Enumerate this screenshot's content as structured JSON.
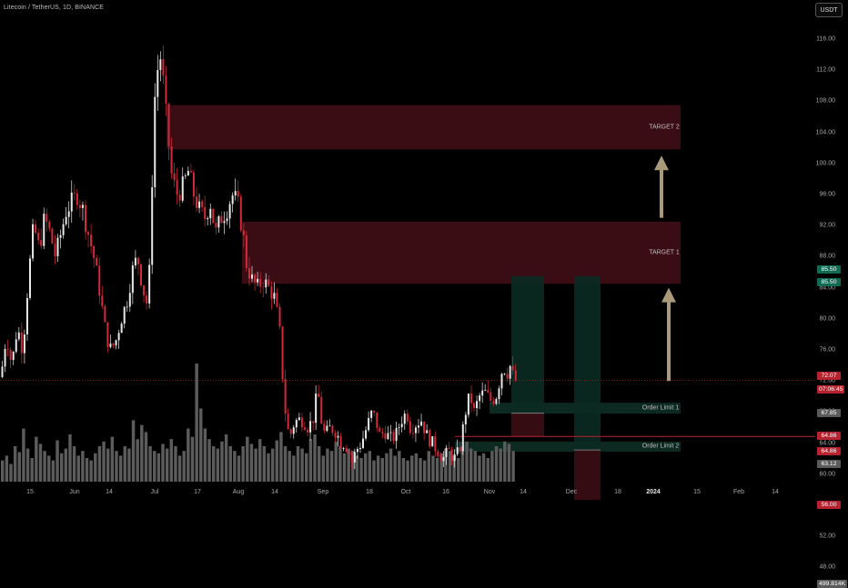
{
  "header": {
    "symbol_line": "Litecoin / TetherUS, 1D, BINANCE",
    "currency_button": "USDT"
  },
  "chart_data": {
    "type": "candlestick",
    "symbol": "Litecoin / TetherUS",
    "interval": "1D",
    "exchange": "BINANCE",
    "y_range": [
      46,
      118
    ],
    "price_ticks": [
      "116.00",
      "112.00",
      "108.00",
      "104.00",
      "100.00",
      "96.00",
      "92.00",
      "88.00",
      "84.00",
      "80.00",
      "76.00",
      "72.00",
      "68.00",
      "64.00",
      "60.00",
      "56.00",
      "52.00",
      "48.00"
    ],
    "x_labels": [
      {
        "label": "15",
        "bold": false
      },
      {
        "label": "Jun",
        "bold": false
      },
      {
        "label": "14",
        "bold": false
      },
      {
        "label": "Jul",
        "bold": false
      },
      {
        "label": "17",
        "bold": false
      },
      {
        "label": "Aug",
        "bold": false
      },
      {
        "label": "14",
        "bold": false
      },
      {
        "label": "Sep",
        "bold": false
      },
      {
        "label": "18",
        "bold": false
      },
      {
        "label": "Oct",
        "bold": false
      },
      {
        "label": "16",
        "bold": false
      },
      {
        "label": "Nov",
        "bold": false
      },
      {
        "label": "14",
        "bold": false
      },
      {
        "label": "Dec",
        "bold": false
      },
      {
        "label": "18",
        "bold": false
      },
      {
        "label": "2024",
        "bold": true
      },
      {
        "label": "15",
        "bold": false
      },
      {
        "label": "Feb",
        "bold": false
      },
      {
        "label": "14",
        "bold": false
      }
    ],
    "price_path": [
      [
        0,
        72.5
      ],
      [
        6,
        78
      ],
      [
        12,
        74
      ],
      [
        18,
        79
      ],
      [
        24,
        76
      ],
      [
        30,
        85
      ],
      [
        36,
        92
      ],
      [
        42,
        89
      ],
      [
        48,
        93
      ],
      [
        54,
        91
      ],
      [
        60,
        88
      ],
      [
        66,
        91
      ],
      [
        72,
        94
      ],
      [
        78,
        95
      ],
      [
        84,
        96
      ],
      [
        90,
        94
      ],
      [
        96,
        91
      ],
      [
        102,
        88
      ],
      [
        108,
        84
      ],
      [
        114,
        79
      ],
      [
        120,
        76
      ],
      [
        126,
        77
      ],
      [
        132,
        80
      ],
      [
        138,
        82
      ],
      [
        144,
        86
      ],
      [
        150,
        88
      ],
      [
        156,
        84
      ],
      [
        160,
        82
      ],
      [
        164,
        87
      ],
      [
        168,
        107
      ],
      [
        172,
        112
      ],
      [
        176,
        114
      ],
      [
        180,
        108
      ],
      [
        184,
        103
      ],
      [
        188,
        98
      ],
      [
        194,
        96
      ],
      [
        200,
        97
      ],
      [
        206,
        99
      ],
      [
        212,
        96
      ],
      [
        218,
        94
      ],
      [
        224,
        93
      ],
      [
        230,
        95
      ],
      [
        236,
        91
      ],
      [
        242,
        93
      ],
      [
        248,
        94
      ],
      [
        254,
        96
      ],
      [
        260,
        95
      ],
      [
        266,
        91
      ],
      [
        270,
        87
      ],
      [
        276,
        85
      ],
      [
        282,
        84
      ],
      [
        288,
        85
      ],
      [
        294,
        84
      ],
      [
        300,
        83
      ],
      [
        306,
        79
      ],
      [
        310,
        72
      ],
      [
        314,
        66
      ],
      [
        318,
        65
      ],
      [
        322,
        66.5
      ],
      [
        326,
        67
      ],
      [
        332,
        67
      ],
      [
        338,
        66
      ],
      [
        344,
        67.5
      ],
      [
        348,
        71
      ],
      [
        352,
        67
      ],
      [
        356,
        65
      ],
      [
        362,
        66
      ],
      [
        368,
        65.5
      ],
      [
        374,
        64
      ],
      [
        378,
        64
      ],
      [
        382,
        63
      ],
      [
        386,
        61.5
      ],
      [
        390,
        63
      ],
      [
        396,
        64
      ],
      [
        402,
        66
      ],
      [
        408,
        68
      ],
      [
        412,
        67
      ],
      [
        416,
        65
      ],
      [
        422,
        65.5
      ],
      [
        428,
        64.5
      ],
      [
        434,
        65
      ],
      [
        440,
        67
      ],
      [
        446,
        68
      ],
      [
        450,
        66
      ],
      [
        456,
        66.5
      ],
      [
        462,
        67
      ],
      [
        468,
        65
      ],
      [
        474,
        64
      ],
      [
        480,
        63
      ],
      [
        486,
        62
      ],
      [
        492,
        63
      ],
      [
        498,
        62
      ],
      [
        504,
        63
      ],
      [
        508,
        66
      ],
      [
        512,
        69
      ],
      [
        516,
        70
      ],
      [
        520,
        68
      ],
      [
        526,
        70
      ],
      [
        532,
        70.5
      ],
      [
        538,
        69.5
      ],
      [
        544,
        70
      ],
      [
        548,
        72
      ],
      [
        552,
        74
      ],
      [
        556,
        73
      ],
      [
        560,
        74
      ],
      [
        564,
        72
      ],
      [
        566,
        72.07
      ]
    ],
    "volume_pct": [
      18,
      22,
      15,
      30,
      25,
      45,
      28,
      20,
      38,
      32,
      26,
      22,
      18,
      35,
      24,
      28,
      40,
      30,
      22,
      26,
      20,
      18,
      24,
      30,
      34,
      28,
      38,
      26,
      22,
      30,
      28,
      52,
      36,
      48,
      42,
      30,
      26,
      24,
      32,
      28,
      36,
      30,
      22,
      26,
      45,
      38,
      100,
      62,
      45,
      36,
      30,
      28,
      34,
      40,
      30,
      26,
      22,
      30,
      38,
      32,
      28,
      36,
      30,
      24,
      28,
      35,
      42,
      30,
      26,
      22,
      30,
      28,
      24,
      36,
      40,
      30,
      22,
      28,
      26,
      34,
      30,
      24,
      28,
      26,
      22,
      20,
      24,
      26,
      18,
      22,
      20,
      24,
      28,
      22,
      26,
      20,
      18,
      22,
      24,
      20,
      18,
      26,
      22,
      20,
      24,
      28,
      26,
      22,
      20,
      30,
      34,
      28,
      26,
      22,
      24,
      20,
      26,
      30,
      28,
      34,
      32,
      26
    ],
    "zones": [
      {
        "name": "target-2",
        "label": "TARGET 2",
        "x0": 183,
        "x1": 748,
        "top": 107.5,
        "bottom": 101.8,
        "color": "#3a0d14"
      },
      {
        "name": "target-1",
        "label": "TARGET 1",
        "x0": 266,
        "x1": 748,
        "top": 92.5,
        "bottom": 84.5,
        "color": "#3a0d14"
      },
      {
        "name": "order-limit-1",
        "label": "Order Limit 1",
        "x0": 538,
        "x1": 748,
        "top": 69.2,
        "bottom": 67.8,
        "color": "#0c2a22"
      },
      {
        "name": "order-limit-2",
        "label": "Order Limit 2",
        "x0": 500,
        "x1": 748,
        "top": 64.2,
        "bottom": 62.9,
        "color": "#0c2a22"
      }
    ],
    "positions": [
      {
        "name": "long-position-1",
        "x0": 562,
        "x1": 598,
        "entry": 67.85,
        "target": 85.5,
        "stop": 64.86
      },
      {
        "name": "long-position-2",
        "x0": 631,
        "x1": 660,
        "entry": 63.12,
        "target": 85.5,
        "stop": 56.0
      }
    ],
    "arrows": [
      {
        "name": "arrow-up-target-2",
        "x": 727,
        "from": 93,
        "to": 101
      },
      {
        "name": "arrow-up-target-1",
        "x": 735,
        "from": 72,
        "to": 84
      }
    ],
    "current_price": 72.07,
    "line_64_86": 64.86
  },
  "price_badges": [
    {
      "name": "badge-85-50-a",
      "text": "85.50",
      "price": 86.3,
      "color": "#0f6b54"
    },
    {
      "name": "badge-85-50-b",
      "text": "85.50",
      "price": 84.6,
      "color": "#0f6b54"
    },
    {
      "name": "badge-72-07",
      "text": "72.07",
      "price": 72.6,
      "color": "#b7222f"
    },
    {
      "name": "badge-countdown",
      "text": "07:06:45",
      "price": 70.9,
      "color": "#b7222f"
    },
    {
      "name": "badge-67-85",
      "text": "67.85",
      "price": 67.85,
      "color": "#5a5a5a"
    },
    {
      "name": "badge-64-86-a",
      "text": "64.86",
      "price": 64.9,
      "color": "#b7222f"
    },
    {
      "name": "badge-64-86-b",
      "text": "64.86",
      "price": 62.9,
      "color": "#b7222f"
    },
    {
      "name": "badge-63-12",
      "text": "63.12",
      "price": 61.3,
      "color": "#5a5a5a"
    },
    {
      "name": "badge-56-00",
      "text": "56.00",
      "price": 56.0,
      "color": "#b7222f"
    },
    {
      "name": "badge-volume",
      "text": "499.814K",
      "price": 45.8,
      "color": "#5a5a5a"
    }
  ]
}
